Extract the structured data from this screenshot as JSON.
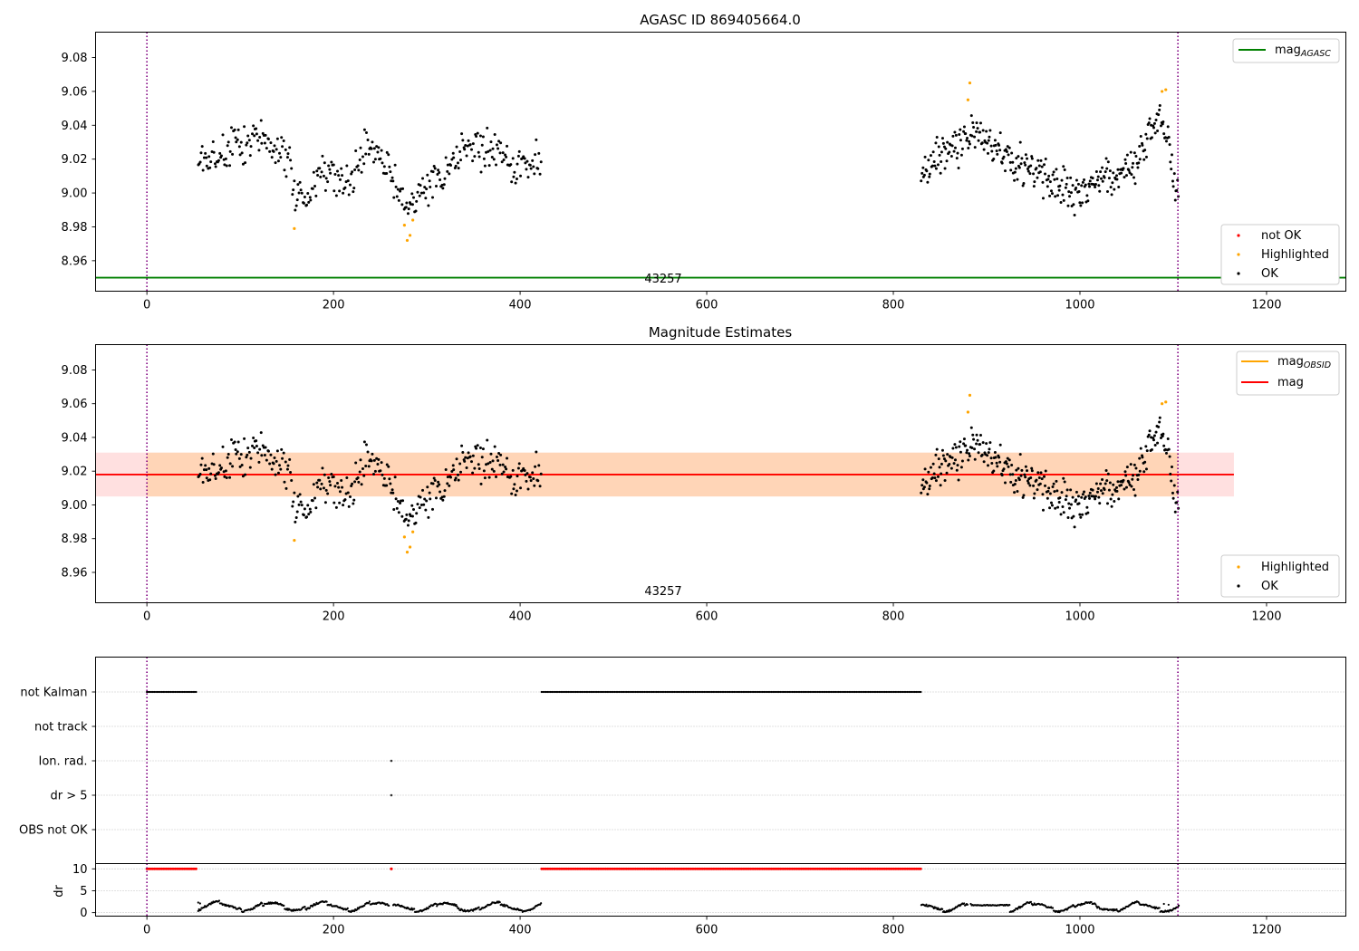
{
  "chart_data": [
    {
      "type": "scatter",
      "title": "AGASC ID 869405664.0",
      "xlim": [
        -55,
        1285
      ],
      "ylim": [
        8.942,
        9.095
      ],
      "xticks": [
        0,
        200,
        400,
        600,
        800,
        1000,
        1200
      ],
      "yticks": [
        8.96,
        8.98,
        9.0,
        9.02,
        9.04,
        9.06,
        9.08
      ],
      "ytick_labels": [
        "8.96",
        "8.98",
        "9.00",
        "9.02",
        "9.04",
        "9.06",
        "9.08"
      ],
      "vlines": [
        0,
        1105
      ],
      "obsid_label": "43257",
      "obsid_label_x": 553,
      "reference_line": {
        "name": "mag_AGASC",
        "label_main": "mag",
        "label_sub": "AGASC",
        "y": 8.95,
        "x": [
          -55,
          1285
        ],
        "color": "#008000"
      },
      "legend_lines": [
        {
          "label_main": "mag",
          "label_sub": "AGASC",
          "color": "#008000"
        }
      ],
      "legend_markers": [
        {
          "label": "not OK",
          "color": "#ff0000"
        },
        {
          "label": "Highlighted",
          "color": "#ffa500"
        },
        {
          "label": "OK",
          "color": "#000000"
        }
      ],
      "highlighted": [
        [
          158,
          8.979
        ],
        [
          276,
          8.981
        ],
        [
          279,
          8.972
        ],
        [
          282,
          8.975
        ],
        [
          285,
          8.984
        ],
        [
          880,
          9.055
        ],
        [
          882,
          9.065
        ],
        [
          1088,
          9.06
        ],
        [
          1092,
          9.061
        ]
      ]
    },
    {
      "type": "scatter",
      "title": "Magnitude Estimates",
      "xlim": [
        -55,
        1285
      ],
      "ylim": [
        8.942,
        9.095
      ],
      "xticks": [
        0,
        200,
        400,
        600,
        800,
        1000,
        1200
      ],
      "yticks": [
        8.96,
        8.98,
        9.0,
        9.02,
        9.04,
        9.06,
        9.08
      ],
      "ytick_labels": [
        "8.96",
        "8.98",
        "9.00",
        "9.02",
        "9.04",
        "9.06",
        "9.08"
      ],
      "vlines": [
        0,
        1105
      ],
      "obsid_label": "43257",
      "obsid_label_x": 553,
      "mag": {
        "name": "mag",
        "value": 9.018,
        "band": [
          9.005,
          9.031
        ],
        "x": [
          -55,
          1165
        ],
        "color": "#ff0000"
      },
      "mag_obsid": {
        "name": "mag_OBSID",
        "value": 9.018,
        "band": [
          9.005,
          9.031
        ],
        "x": [
          0,
          1105
        ],
        "color": "#ffa500"
      },
      "legend_lines": [
        {
          "label_main": "mag",
          "label_sub": "OBSID",
          "color": "#ffa500"
        },
        {
          "label_main": "mag",
          "label_sub": "",
          "color": "#ff0000"
        }
      ],
      "legend_markers": [
        {
          "label": "Highlighted",
          "color": "#ffa500"
        },
        {
          "label": "OK",
          "color": "#000000"
        }
      ],
      "highlighted": [
        [
          158,
          8.979
        ],
        [
          276,
          8.981
        ],
        [
          279,
          8.972
        ],
        [
          282,
          8.975
        ],
        [
          285,
          8.984
        ],
        [
          880,
          9.055
        ],
        [
          882,
          9.065
        ],
        [
          1088,
          9.06
        ],
        [
          1092,
          9.061
        ]
      ]
    },
    {
      "type": "scatter",
      "title": "",
      "xlim": [
        -55,
        1285
      ],
      "xticks": [
        0,
        200,
        400,
        600,
        800,
        1000,
        1200
      ],
      "categories": [
        "not Kalman",
        "not track",
        "Ion. rad.",
        "dr > 5",
        "OBS not OK"
      ],
      "vlines": [
        0,
        1105
      ],
      "flags": [
        {
          "name": "not Kalman",
          "ranges": [
            [
              0,
              53
            ],
            [
              423,
              830
            ]
          ],
          "points": []
        },
        {
          "name": "not track",
          "ranges": [],
          "points": []
        },
        {
          "name": "Ion. rad.",
          "ranges": [],
          "points": [
            262
          ]
        },
        {
          "name": "dr > 5",
          "ranges": [],
          "points": [
            262
          ]
        },
        {
          "name": "OBS not OK",
          "ranges": [],
          "points": []
        }
      ]
    },
    {
      "type": "scatter",
      "title": "",
      "ylabel": "dr",
      "xlim": [
        -55,
        1285
      ],
      "ylim": [
        -0.8,
        11.2
      ],
      "xticks": [
        0,
        200,
        400,
        600,
        800,
        1000,
        1200
      ],
      "yticks": [
        0,
        5,
        10
      ],
      "ytick_labels": [
        "0",
        "5",
        "10"
      ],
      "vlines": [
        0,
        1105
      ],
      "clipped": {
        "y": 10,
        "ranges": [
          [
            0,
            53
          ],
          [
            423,
            830
          ]
        ],
        "points": [
          262
        ],
        "color": "#ff0000"
      }
    }
  ]
}
